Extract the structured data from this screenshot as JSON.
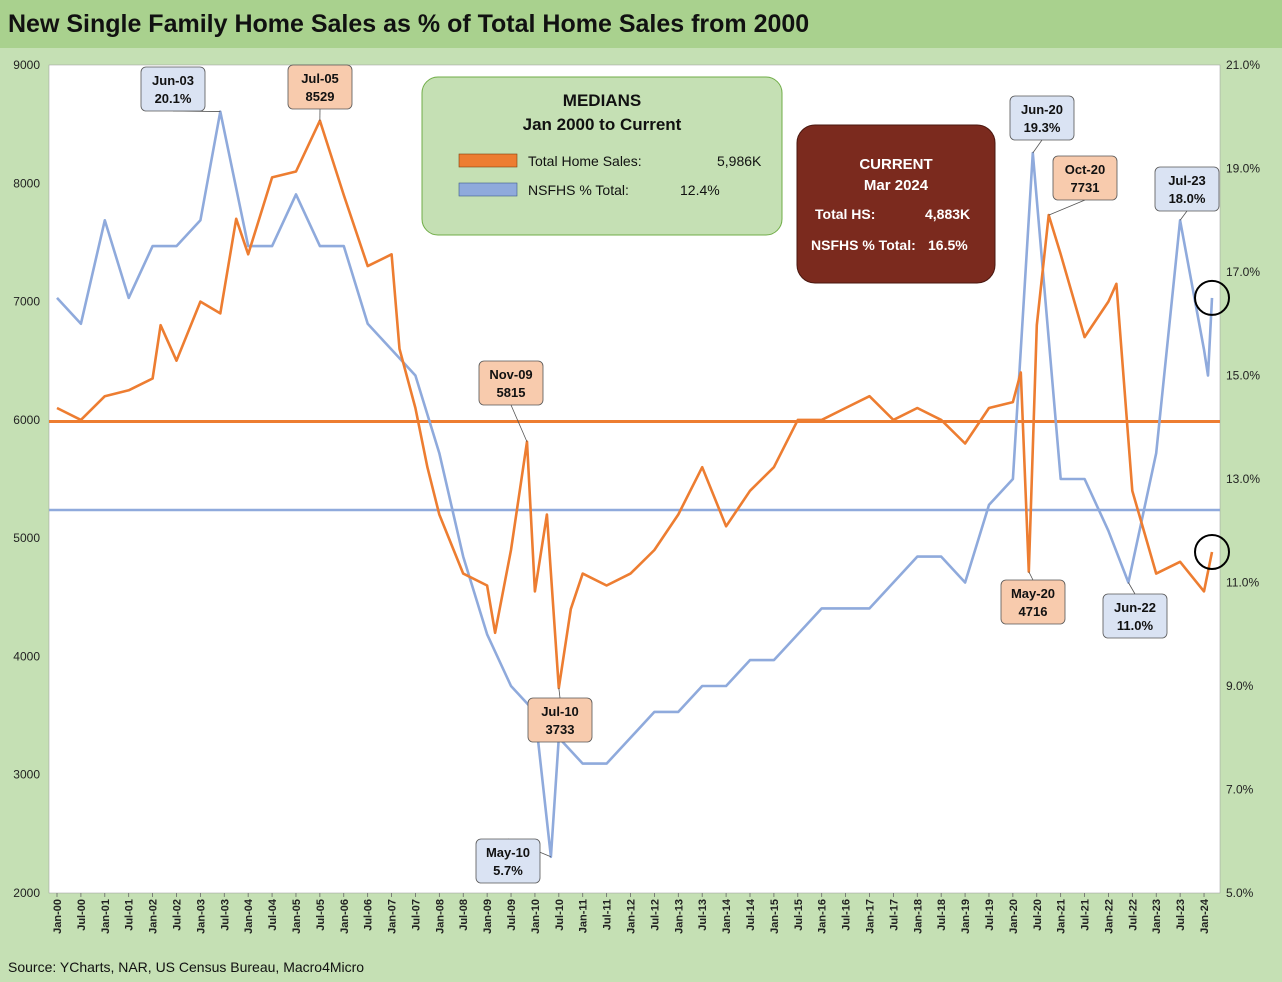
{
  "title": "New Single Family Home Sales as % of Total Home Sales from 2000",
  "source": "Source: YCharts, NAR, US Census Bureau, Macro4Micro",
  "colors": {
    "orange": "#ed7d31",
    "blue": "#8faadc",
    "background": "#c5e0b4",
    "plot": "#ffffff",
    "current_box": "#7b2a1e",
    "medians_box": "#c5e0b4"
  },
  "medians_box": {
    "title_line1": "MEDIANS",
    "title_line2": "Jan 2000 to Current",
    "row1_label": "Total Home Sales:",
    "row1_value": "5,986K",
    "row2_label": "NSFHS % Total:",
    "row2_value": "12.4%"
  },
  "current_box": {
    "title_line1": "CURRENT",
    "title_line2": "Mar 2024",
    "row1_label": "Total HS:",
    "row1_value": "4,883K",
    "row2_label": "NSFHS % Total:",
    "row2_value": "16.5%"
  },
  "chart_data": {
    "type": "line",
    "title": "New Single Family Home Sales as % of Total Home Sales from 2000",
    "x_start": "Jan-00",
    "x_end": "Mar-24",
    "x_tick_labels": [
      "Jan-00",
      "Jul-00",
      "Jan-01",
      "Jul-01",
      "Jan-02",
      "Jul-02",
      "Jan-03",
      "Jul-03",
      "Jan-04",
      "Jul-04",
      "Jan-05",
      "Jul-05",
      "Jan-06",
      "Jul-06",
      "Jan-07",
      "Jul-07",
      "Jan-08",
      "Jul-08",
      "Jan-09",
      "Jul-09",
      "Jan-10",
      "Jul-10",
      "Jan-11",
      "Jul-11",
      "Jan-12",
      "Jul-12",
      "Jan-13",
      "Jul-13",
      "Jan-14",
      "Jul-14",
      "Jan-15",
      "Jul-15",
      "Jan-16",
      "Jul-16",
      "Jan-17",
      "Jul-17",
      "Jan-18",
      "Jul-18",
      "Jan-19",
      "Jul-19",
      "Jan-20",
      "Jul-20",
      "Jan-21",
      "Jul-21",
      "Jan-22",
      "Jul-22",
      "Jan-23",
      "Jul-23",
      "Jan-24"
    ],
    "y_left": {
      "min": 2000,
      "max": 9000,
      "ticks": [
        "2000",
        "3000",
        "4000",
        "5000",
        "6000",
        "7000",
        "8000",
        "9000"
      ]
    },
    "y_right": {
      "min": 5.0,
      "max": 21.0,
      "ticks": [
        "5.0%",
        "7.0%",
        "9.0%",
        "11.0%",
        "13.0%",
        "15.0%",
        "17.0%",
        "19.0%",
        "21.0%"
      ]
    },
    "grid": false,
    "series": [
      {
        "name": "Total Home Sales",
        "axis": "left",
        "color": "#ed7d31",
        "median": 5986,
        "points": [
          [
            "Jan-00",
            6100
          ],
          [
            "Jul-00",
            6000
          ],
          [
            "Jan-01",
            6200
          ],
          [
            "Jul-01",
            6250
          ],
          [
            "Jan-02",
            6350
          ],
          [
            "Mar-02",
            6800
          ],
          [
            "Jul-02",
            6500
          ],
          [
            "Jan-03",
            7000
          ],
          [
            "Jun-03",
            6900
          ],
          [
            "Oct-03",
            7700
          ],
          [
            "Jan-04",
            7400
          ],
          [
            "Jul-04",
            8050
          ],
          [
            "Jan-05",
            8100
          ],
          [
            "Jul-05",
            8529
          ],
          [
            "Jan-06",
            7900
          ],
          [
            "Jul-06",
            7300
          ],
          [
            "Jan-07",
            7400
          ],
          [
            "Mar-07",
            6600
          ],
          [
            "Jul-07",
            6100
          ],
          [
            "Oct-07",
            5600
          ],
          [
            "Jan-08",
            5200
          ],
          [
            "Jul-08",
            4700
          ],
          [
            "Jan-09",
            4600
          ],
          [
            "Mar-09",
            4200
          ],
          [
            "Jul-09",
            4900
          ],
          [
            "Nov-09",
            5815
          ],
          [
            "Jan-10",
            4550
          ],
          [
            "Apr-10",
            5200
          ],
          [
            "Jul-10",
            3733
          ],
          [
            "Oct-10",
            4400
          ],
          [
            "Jan-11",
            4700
          ],
          [
            "Jul-11",
            4600
          ],
          [
            "Jan-12",
            4700
          ],
          [
            "Jul-12",
            4900
          ],
          [
            "Jan-13",
            5200
          ],
          [
            "Jul-13",
            5600
          ],
          [
            "Jan-14",
            5100
          ],
          [
            "Jul-14",
            5400
          ],
          [
            "Jan-15",
            5600
          ],
          [
            "Jul-15",
            6000
          ],
          [
            "Jan-16",
            6000
          ],
          [
            "Jul-16",
            6100
          ],
          [
            "Jan-17",
            6200
          ],
          [
            "Jul-17",
            6000
          ],
          [
            "Jan-18",
            6100
          ],
          [
            "Jul-18",
            6000
          ],
          [
            "Jan-19",
            5800
          ],
          [
            "Jul-19",
            6100
          ],
          [
            "Jan-20",
            6150
          ],
          [
            "Mar-20",
            6400
          ],
          [
            "May-20",
            4716
          ],
          [
            "Jul-20",
            6800
          ],
          [
            "Oct-20",
            7731
          ],
          [
            "Jan-21",
            7400
          ],
          [
            "Jul-21",
            6700
          ],
          [
            "Jan-22",
            7000
          ],
          [
            "Mar-22",
            7150
          ],
          [
            "Jul-22",
            5400
          ],
          [
            "Jan-23",
            4700
          ],
          [
            "Jul-23",
            4800
          ],
          [
            "Jan-24",
            4550
          ],
          [
            "Mar-24",
            4883
          ]
        ]
      },
      {
        "name": "NSFHS % Total",
        "axis": "right",
        "color": "#8faadc",
        "median": 12.4,
        "points": [
          [
            "Jan-00",
            16.5
          ],
          [
            "Jul-00",
            16.0
          ],
          [
            "Jan-01",
            18.0
          ],
          [
            "Jul-01",
            16.5
          ],
          [
            "Jan-02",
            17.5
          ],
          [
            "Jul-02",
            17.5
          ],
          [
            "Jan-03",
            18.0
          ],
          [
            "Jun-03",
            20.1
          ],
          [
            "Jan-04",
            17.5
          ],
          [
            "Jul-04",
            17.5
          ],
          [
            "Jan-05",
            18.5
          ],
          [
            "Jul-05",
            17.5
          ],
          [
            "Jan-06",
            17.5
          ],
          [
            "Jul-06",
            16.0
          ],
          [
            "Jan-07",
            15.5
          ],
          [
            "Jul-07",
            15.0
          ],
          [
            "Jan-08",
            13.5
          ],
          [
            "Jul-08",
            11.5
          ],
          [
            "Jan-09",
            10.0
          ],
          [
            "Jul-09",
            9.0
          ],
          [
            "Jan-10",
            8.5
          ],
          [
            "May-10",
            5.7
          ],
          [
            "Jul-10",
            8.0
          ],
          [
            "Jan-11",
            7.5
          ],
          [
            "Jul-11",
            7.5
          ],
          [
            "Jan-12",
            8.0
          ],
          [
            "Jul-12",
            8.5
          ],
          [
            "Jan-13",
            8.5
          ],
          [
            "Jul-13",
            9.0
          ],
          [
            "Jan-14",
            9.0
          ],
          [
            "Jul-14",
            9.5
          ],
          [
            "Jan-15",
            9.5
          ],
          [
            "Jul-15",
            10.0
          ],
          [
            "Jan-16",
            10.5
          ],
          [
            "Jul-16",
            10.5
          ],
          [
            "Jan-17",
            10.5
          ],
          [
            "Jul-17",
            11.0
          ],
          [
            "Jan-18",
            11.5
          ],
          [
            "Jul-18",
            11.5
          ],
          [
            "Jan-19",
            11.0
          ],
          [
            "Jul-19",
            12.5
          ],
          [
            "Jan-20",
            13.0
          ],
          [
            "Jun-20",
            19.3
          ],
          [
            "Jan-21",
            13.0
          ],
          [
            "Jul-21",
            13.0
          ],
          [
            "Jan-22",
            12.0
          ],
          [
            "Jun-22",
            11.0
          ],
          [
            "Jan-23",
            13.5
          ],
          [
            "Jul-23",
            18.0
          ],
          [
            "Jan-24",
            15.5
          ],
          [
            "Feb-24",
            15.0
          ],
          [
            "Mar-24",
            16.5
          ]
        ]
      }
    ],
    "annotations": [
      {
        "date": "Jun-03",
        "label": "Jun-03",
        "value_text": "20.1%",
        "series": "NSFHS % Total"
      },
      {
        "date": "Jul-05",
        "label": "Jul-05",
        "value_text": "8529",
        "series": "Total Home Sales"
      },
      {
        "date": "Nov-09",
        "label": "Nov-09",
        "value_text": "5815",
        "series": "Total Home Sales"
      },
      {
        "date": "Jul-10",
        "label": "Jul-10",
        "value_text": "3733",
        "series": "Total Home Sales"
      },
      {
        "date": "May-10",
        "label": "May-10",
        "value_text": "5.7%",
        "series": "NSFHS % Total"
      },
      {
        "date": "Jun-20",
        "label": "Jun-20",
        "value_text": "19.3%",
        "series": "NSFHS % Total"
      },
      {
        "date": "Oct-20",
        "label": "Oct-20",
        "value_text": "7731",
        "series": "Total Home Sales"
      },
      {
        "date": "May-20",
        "label": "May-20",
        "value_text": "4716",
        "series": "Total Home Sales"
      },
      {
        "date": "Jul-23",
        "label": "Jul-23",
        "value_text": "18.0%",
        "series": "NSFHS % Total"
      },
      {
        "date": "Jun-22",
        "label": "Jun-22",
        "value_text": "11.0%",
        "series": "NSFHS % Total"
      }
    ]
  }
}
